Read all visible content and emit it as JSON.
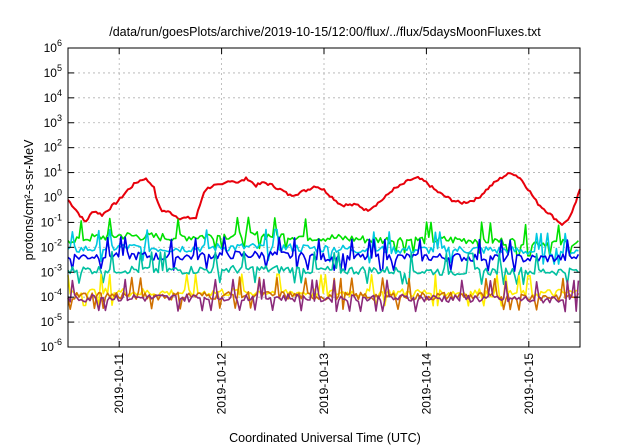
{
  "chart_data": {
    "type": "line",
    "title": "/data/run/goesPlots/archive/2019-10-15/12:00/flux/../flux/5daysMoonFluxes.txt",
    "xlabel": "Coordinated Universal Time (UTC)",
    "ylabel": "protons/cm²-s-sr-MeV",
    "y_scale": "log",
    "ylim": [
      1e-06,
      1000000.0
    ],
    "xlim": [
      "2019-10-10T12:00",
      "2019-10-15T12:00"
    ],
    "grid": true,
    "legend": "none",
    "x_ticks": [
      "2019-10-11",
      "2019-10-12",
      "2019-10-13",
      "2019-10-14",
      "2019-10-15"
    ],
    "y_ticks": [
      {
        "base": "10",
        "exp": "-6"
      },
      {
        "base": "10",
        "exp": "-5"
      },
      {
        "base": "10",
        "exp": "-4"
      },
      {
        "base": "10",
        "exp": "-3"
      },
      {
        "base": "10",
        "exp": "-2"
      },
      {
        "base": "10",
        "exp": "-1"
      },
      {
        "base": "10",
        "exp": "0"
      },
      {
        "base": "10",
        "exp": "1"
      },
      {
        "base": "10",
        "exp": "2"
      },
      {
        "base": "10",
        "exp": "3"
      },
      {
        "base": "10",
        "exp": "4"
      },
      {
        "base": "10",
        "exp": "5"
      },
      {
        "base": "10",
        "exp": "6"
      }
    ],
    "series": [
      {
        "color": "#e8000b",
        "x": [
          "2019-10-10T12:00",
          "2019-10-10T14:00",
          "2019-10-10T16:00",
          "2019-10-10T18:00",
          "2019-10-10T20:00",
          "2019-10-10T22:00",
          "2019-10-11T00:00",
          "2019-10-11T02:00",
          "2019-10-11T04:00",
          "2019-10-11T06:00",
          "2019-10-11T08:00",
          "2019-10-11T09:00",
          "2019-10-11T10:00",
          "2019-10-11T12:00",
          "2019-10-11T14:00",
          "2019-10-11T16:00",
          "2019-10-11T18:00",
          "2019-10-11T20:00",
          "2019-10-11T22:00",
          "2019-10-12T00:00",
          "2019-10-12T02:00",
          "2019-10-12T04:00",
          "2019-10-12T06:00",
          "2019-10-12T08:00",
          "2019-10-12T10:00",
          "2019-10-12T12:00",
          "2019-10-12T14:00",
          "2019-10-12T16:00",
          "2019-10-12T18:00",
          "2019-10-12T20:00",
          "2019-10-12T22:00",
          "2019-10-13T00:00",
          "2019-10-13T02:00",
          "2019-10-13T04:00",
          "2019-10-13T06:00",
          "2019-10-13T08:00",
          "2019-10-13T10:00",
          "2019-10-13T12:00",
          "2019-10-13T14:00",
          "2019-10-13T16:00",
          "2019-10-13T18:00",
          "2019-10-13T20:00",
          "2019-10-13T22:00",
          "2019-10-14T00:00",
          "2019-10-14T02:00",
          "2019-10-14T04:00",
          "2019-10-14T06:00",
          "2019-10-14T08:00",
          "2019-10-14T10:00",
          "2019-10-14T12:00",
          "2019-10-14T14:00",
          "2019-10-14T16:00",
          "2019-10-14T18:00",
          "2019-10-14T20:00",
          "2019-10-14T22:00",
          "2019-10-15T00:00",
          "2019-10-15T02:00",
          "2019-10-15T04:00",
          "2019-10-15T06:00",
          "2019-10-15T08:00",
          "2019-10-15T10:00",
          "2019-10-15T12:00"
        ],
        "y": [
          0.8,
          0.3,
          0.1,
          0.3,
          0.2,
          0.4,
          0.8,
          2,
          4,
          6,
          3,
          0.6,
          0.3,
          0.25,
          0.15,
          0.15,
          0.15,
          2,
          3,
          3,
          5,
          4,
          6,
          3,
          4,
          3,
          2,
          1.2,
          1.5,
          2,
          3,
          2,
          1,
          0.5,
          0.5,
          0.5,
          0.3,
          0.5,
          0.9,
          2,
          3,
          5,
          6,
          4,
          2,
          1.2,
          0.8,
          0.6,
          0.7,
          0.9,
          2,
          4,
          7,
          10,
          6,
          2,
          0.6,
          0.3,
          0.15,
          0.08,
          0.2,
          2
        ]
      },
      {
        "color": "#00e000",
        "x": [
          "2019-10-10T12:00",
          "2019-10-11T00:00",
          "2019-10-11T12:00",
          "2019-10-12T00:00",
          "2019-10-12T12:00",
          "2019-10-13T00:00",
          "2019-10-13T12:00",
          "2019-10-14T00:00",
          "2019-10-14T12:00",
          "2019-10-15T00:00",
          "2019-10-15T12:00"
        ],
        "y": [
          0.02,
          0.03,
          0.025,
          0.03,
          0.03,
          0.025,
          0.02,
          0.02,
          0.02,
          0.015,
          0.015
        ]
      },
      {
        "color": "#00c8e0",
        "x": [
          "2019-10-10T12:00",
          "2019-10-11T00:00",
          "2019-10-11T12:00",
          "2019-10-12T00:00",
          "2019-10-12T12:00",
          "2019-10-13T00:00",
          "2019-10-13T12:00",
          "2019-10-14T00:00",
          "2019-10-14T12:00",
          "2019-10-15T00:00",
          "2019-10-15T12:00"
        ],
        "y": [
          0.008,
          0.01,
          0.009,
          0.01,
          0.01,
          0.009,
          0.008,
          0.008,
          0.008,
          0.007,
          0.007
        ]
      },
      {
        "color": "#0000e8",
        "x": [
          "2019-10-10T12:00",
          "2019-10-11T00:00",
          "2019-10-11T12:00",
          "2019-10-12T00:00",
          "2019-10-12T12:00",
          "2019-10-13T00:00",
          "2019-10-13T12:00",
          "2019-10-14T00:00",
          "2019-10-14T12:00",
          "2019-10-15T00:00",
          "2019-10-15T12:00"
        ],
        "y": [
          0.004,
          0.005,
          0.004,
          0.005,
          0.005,
          0.004,
          0.004,
          0.004,
          0.004,
          0.0035,
          0.004
        ]
      },
      {
        "color": "#00c0a0",
        "x": [
          "2019-10-10T12:00",
          "2019-10-11T00:00",
          "2019-10-11T12:00",
          "2019-10-12T00:00",
          "2019-10-12T12:00",
          "2019-10-13T00:00",
          "2019-10-13T12:00",
          "2019-10-14T00:00",
          "2019-10-14T12:00",
          "2019-10-15T00:00",
          "2019-10-15T12:00"
        ],
        "y": [
          0.0012,
          0.0013,
          0.0012,
          0.0013,
          0.0013,
          0.0012,
          0.0012,
          0.0011,
          0.0011,
          0.0011,
          0.0011
        ]
      },
      {
        "color": "#ffee00",
        "x": [
          "2019-10-10T12:00",
          "2019-10-11T00:00",
          "2019-10-11T12:00",
          "2019-10-12T00:00",
          "2019-10-12T12:00",
          "2019-10-13T00:00",
          "2019-10-13T12:00",
          "2019-10-14T00:00",
          "2019-10-14T12:00",
          "2019-10-15T00:00",
          "2019-10-15T12:00"
        ],
        "y": [
          0.00015,
          0.00016,
          0.00015,
          0.00016,
          0.00016,
          0.00015,
          0.00015,
          0.00015,
          0.00015,
          0.00014,
          0.00015
        ]
      },
      {
        "color": "#d07000",
        "x": [
          "2019-10-10T12:00",
          "2019-10-11T00:00",
          "2019-10-11T12:00",
          "2019-10-12T00:00",
          "2019-10-12T12:00",
          "2019-10-13T00:00",
          "2019-10-13T12:00",
          "2019-10-14T00:00",
          "2019-10-14T12:00",
          "2019-10-15T00:00",
          "2019-10-15T12:00"
        ],
        "y": [
          0.00011,
          0.00012,
          0.00011,
          0.00012,
          0.00012,
          0.00011,
          0.00011,
          0.00011,
          0.00011,
          0.0001,
          0.00011
        ]
      },
      {
        "color": "#8b2a7a",
        "x": [
          "2019-10-10T12:00",
          "2019-10-11T00:00",
          "2019-10-11T12:00",
          "2019-10-12T00:00",
          "2019-10-12T12:00",
          "2019-10-13T00:00",
          "2019-10-13T12:00",
          "2019-10-14T00:00",
          "2019-10-14T12:00",
          "2019-10-15T00:00",
          "2019-10-15T12:00"
        ],
        "y": [
          9e-05,
          0.0001,
          9e-05,
          0.0001,
          0.0001,
          9e-05,
          9e-05,
          9e-05,
          9e-05,
          8e-05,
          9e-05
        ]
      }
    ]
  }
}
